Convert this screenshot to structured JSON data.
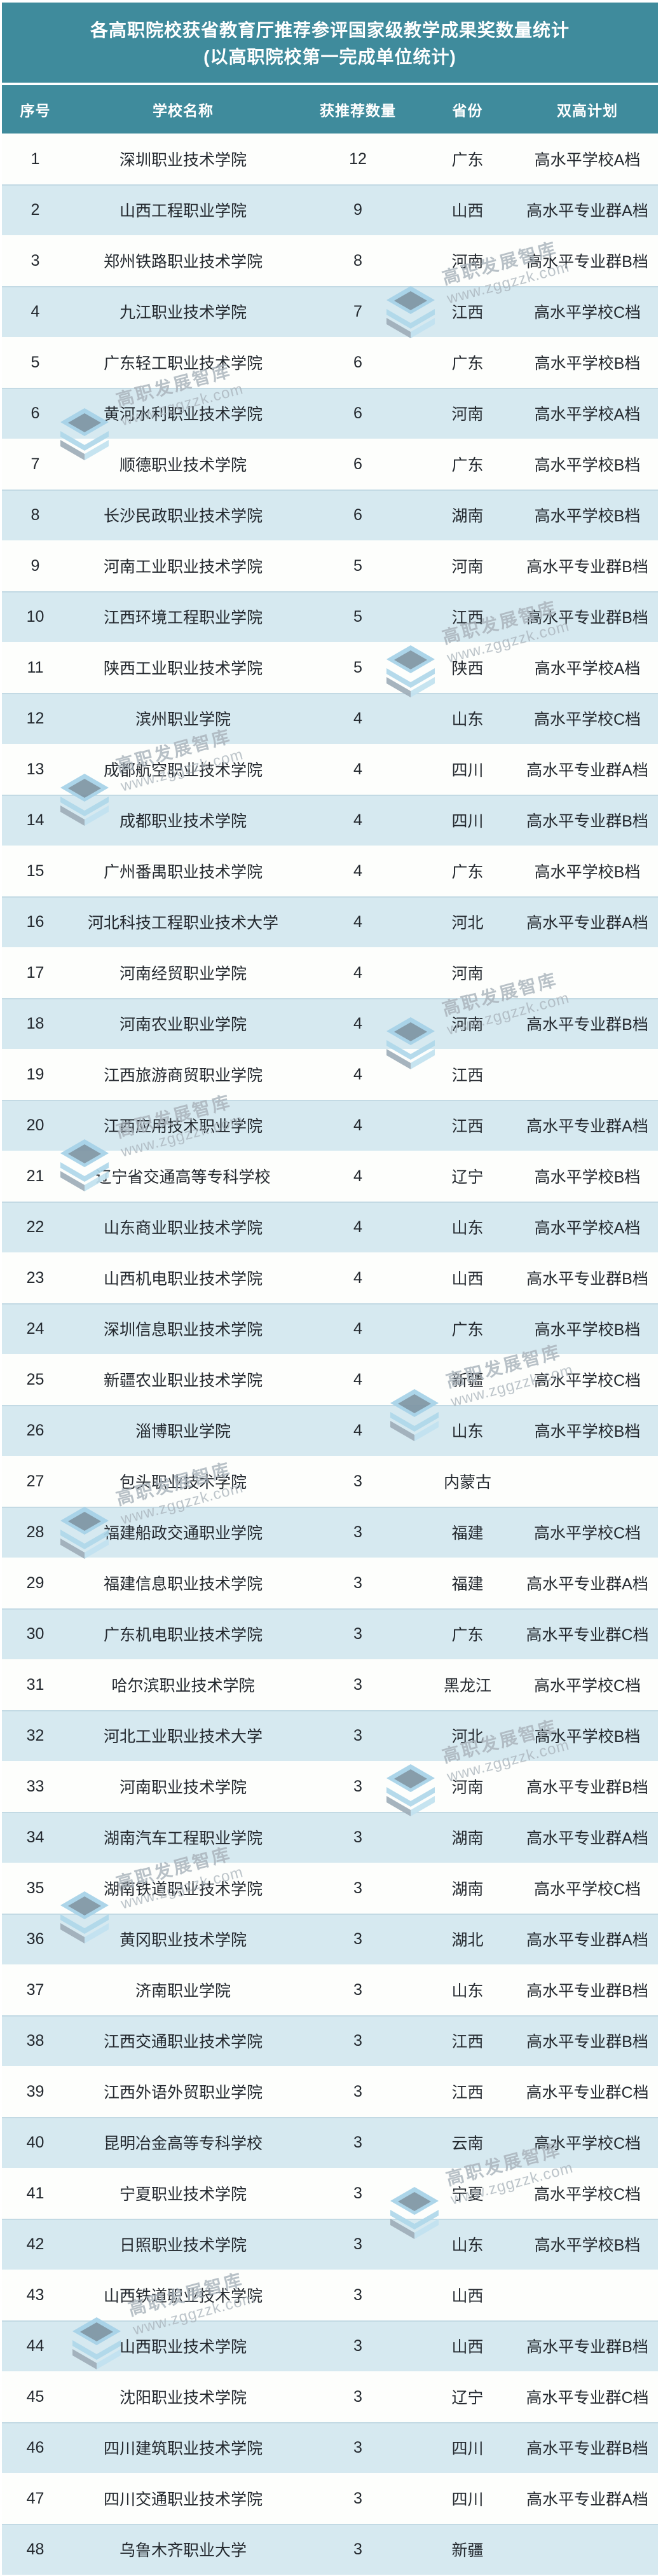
{
  "colors": {
    "header_teal": "#3F8B9C",
    "row_blue": "#D6E9F0",
    "row_blue_border": "#C3DAE4",
    "row_white": "#FDFEFC",
    "text_dark": "#23282E",
    "watermark_gray": "#A8B2BA",
    "logo_light_blue": "#A6D2E8",
    "logo_slate": "#7E95A4",
    "logo_mid_blue": "#AFD8EA",
    "logo_pale_blue": "#C2E2F0",
    "logo_gray": "#9FAEB9"
  },
  "watermark": {
    "brand": "高职发展智库",
    "url": "www.zggzzk.com"
  },
  "chart_data": {
    "type": "table",
    "title": "各高职院校获省教育厅推荐参评国家级教学成果奖数量统计",
    "subtitle": "(以高职院校第一完成单位统计)",
    "columns": [
      "序号",
      "学校名称",
      "获推荐数量",
      "省份",
      "双高计划"
    ],
    "rows": [
      [
        1,
        "深圳职业技术学院",
        12,
        "广东",
        "高水平学校A档"
      ],
      [
        2,
        "山西工程职业学院",
        9,
        "山西",
        "高水平专业群A档"
      ],
      [
        3,
        "郑州铁路职业技术学院",
        8,
        "河南",
        "高水平专业群B档"
      ],
      [
        4,
        "九江职业技术学院",
        7,
        "江西",
        "高水平学校C档"
      ],
      [
        5,
        "广东轻工职业技术学院",
        6,
        "广东",
        "高水平学校B档"
      ],
      [
        6,
        "黄河水利职业技术学院",
        6,
        "河南",
        "高水平学校A档"
      ],
      [
        7,
        "顺德职业技术学院",
        6,
        "广东",
        "高水平学校B档"
      ],
      [
        8,
        "长沙民政职业技术学院",
        6,
        "湖南",
        "高水平学校B档"
      ],
      [
        9,
        "河南工业职业技术学院",
        5,
        "河南",
        "高水平专业群B档"
      ],
      [
        10,
        "江西环境工程职业学院",
        5,
        "江西",
        "高水平专业群B档"
      ],
      [
        11,
        "陕西工业职业技术学院",
        5,
        "陕西",
        "高水平学校A档"
      ],
      [
        12,
        "滨州职业学院",
        4,
        "山东",
        "高水平学校C档"
      ],
      [
        13,
        "成都航空职业技术学院",
        4,
        "四川",
        "高水平专业群A档"
      ],
      [
        14,
        "成都职业技术学院",
        4,
        "四川",
        "高水平专业群B档"
      ],
      [
        15,
        "广州番禺职业技术学院",
        4,
        "广东",
        "高水平学校B档"
      ],
      [
        16,
        "河北科技工程职业技术大学",
        4,
        "河北",
        "高水平专业群A档"
      ],
      [
        17,
        "河南经贸职业学院",
        4,
        "河南",
        ""
      ],
      [
        18,
        "河南农业职业学院",
        4,
        "河南",
        "高水平专业群B档"
      ],
      [
        19,
        "江西旅游商贸职业学院",
        4,
        "江西",
        ""
      ],
      [
        20,
        "江西应用技术职业学院",
        4,
        "江西",
        "高水平专业群A档"
      ],
      [
        21,
        "辽宁省交通高等专科学校",
        4,
        "辽宁",
        "高水平学校B档"
      ],
      [
        22,
        "山东商业职业技术学院",
        4,
        "山东",
        "高水平学校A档"
      ],
      [
        23,
        "山西机电职业技术学院",
        4,
        "山西",
        "高水平专业群B档"
      ],
      [
        24,
        "深圳信息职业技术学院",
        4,
        "广东",
        "高水平学校B档"
      ],
      [
        25,
        "新疆农业职业技术学院",
        4,
        "新疆",
        "高水平学校C档"
      ],
      [
        26,
        "淄博职业学院",
        4,
        "山东",
        "高水平学校B档"
      ],
      [
        27,
        "包头职业技术学院",
        3,
        "内蒙古",
        ""
      ],
      [
        28,
        "福建船政交通职业学院",
        3,
        "福建",
        "高水平学校C档"
      ],
      [
        29,
        "福建信息职业技术学院",
        3,
        "福建",
        "高水平专业群A档"
      ],
      [
        30,
        "广东机电职业技术学院",
        3,
        "广东",
        "高水平专业群C档"
      ],
      [
        31,
        "哈尔滨职业技术学院",
        3,
        "黑龙江",
        "高水平学校C档"
      ],
      [
        32,
        "河北工业职业技术大学",
        3,
        "河北",
        "高水平学校B档"
      ],
      [
        33,
        "河南职业技术学院",
        3,
        "河南",
        "高水平专业群B档"
      ],
      [
        34,
        "湖南汽车工程职业学院",
        3,
        "湖南",
        "高水平专业群A档"
      ],
      [
        35,
        "湖南铁道职业技术学院",
        3,
        "湖南",
        "高水平学校C档"
      ],
      [
        36,
        "黄冈职业技术学院",
        3,
        "湖北",
        "高水平专业群A档"
      ],
      [
        37,
        "济南职业学院",
        3,
        "山东",
        "高水平专业群B档"
      ],
      [
        38,
        "江西交通职业技术学院",
        3,
        "江西",
        "高水平专业群B档"
      ],
      [
        39,
        "江西外语外贸职业学院",
        3,
        "江西",
        "高水平专业群C档"
      ],
      [
        40,
        "昆明冶金高等专科学校",
        3,
        "云南",
        "高水平学校C档"
      ],
      [
        41,
        "宁夏职业技术学院",
        3,
        "宁夏",
        "高水平学校C档"
      ],
      [
        42,
        "日照职业技术学院",
        3,
        "山东",
        "高水平学校B档"
      ],
      [
        43,
        "山西铁道职业技术学院",
        3,
        "山西",
        ""
      ],
      [
        44,
        "山西职业技术学院",
        3,
        "山西",
        "高水平专业群B档"
      ],
      [
        45,
        "沈阳职业技术学院",
        3,
        "辽宁",
        "高水平专业群C档"
      ],
      [
        46,
        "四川建筑职业技术学院",
        3,
        "四川",
        "高水平专业群B档"
      ],
      [
        47,
        "四川交通职业技术学院",
        3,
        "四川",
        "高水平专业群A档"
      ],
      [
        48,
        "乌鲁木齐职业大学",
        3,
        "新疆",
        ""
      ]
    ]
  }
}
